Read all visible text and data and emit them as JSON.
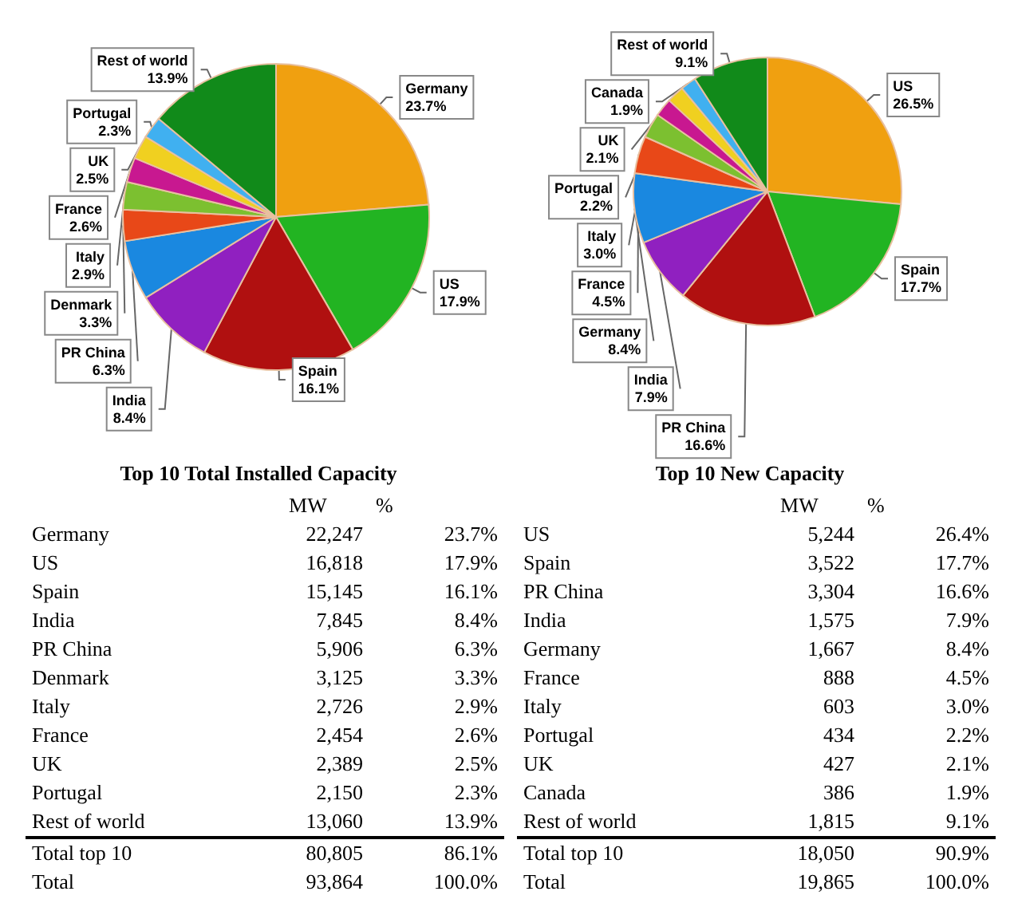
{
  "chart_data": [
    {
      "type": "pie",
      "title": "Top 10 Total Installed Capacity",
      "categories": [
        "Germany",
        "US",
        "Spain",
        "India",
        "PR China",
        "Denmark",
        "Italy",
        "France",
        "UK",
        "Portugal",
        "Rest of world"
      ],
      "values": [
        23.7,
        17.9,
        16.1,
        8.4,
        6.3,
        3.3,
        2.9,
        2.6,
        2.5,
        2.3,
        13.9
      ],
      "value_labels": [
        "23.7%",
        "17.9%",
        "16.1%",
        "8.4%",
        "6.3%",
        "3.3%",
        "2.9%",
        "2.6%",
        "2.5%",
        "2.3%",
        "13.9%"
      ],
      "colors": [
        "#f0a010",
        "#22b422",
        "#b01010",
        "#9020c0",
        "#1a88e0",
        "#e84818",
        "#7cc030",
        "#c81890",
        "#f0d020",
        "#40b0f0",
        "#118a1a"
      ],
      "data_labels": true,
      "legend": false
    },
    {
      "type": "other",
      "categories": [
        "MW",
        "%"
      ],
      "y_categories": [
        "Germany",
        "US",
        "Spain",
        "India",
        "PR China",
        "Denmark",
        "Italy",
        "France",
        "UK",
        "Portugal",
        "Rest of world"
      ],
      "cell_labels": [
        [
          "22,247",
          "23.7%"
        ],
        [
          "16,818",
          "17.9%"
        ],
        [
          "15,145",
          "16.1%"
        ],
        [
          "7,845",
          "8.4%"
        ],
        [
          "5,906",
          "6.3%"
        ],
        [
          "3,125",
          "3.3%"
        ],
        [
          "2,726",
          "2.9%"
        ],
        [
          "2,454",
          "2.6%"
        ],
        [
          "2,389",
          "2.5%"
        ],
        [
          "2,150",
          "2.3%"
        ],
        [
          "13,060",
          "13.9%"
        ]
      ],
      "totals": [
        [
          "Total top 10",
          "80,805",
          "86.1%"
        ],
        [
          "Total",
          "93,864",
          "100.0%"
        ]
      ]
    },
    {
      "type": "pie",
      "title": "Top 10 New Capacity",
      "categories": [
        "US",
        "Spain",
        "PR China",
        "India",
        "Germany",
        "France",
        "Italy",
        "Portugal",
        "UK",
        "Canada",
        "Rest of world"
      ],
      "values": [
        26.5,
        17.7,
        16.6,
        7.9,
        8.4,
        4.5,
        3.0,
        2.2,
        2.1,
        1.9,
        9.1
      ],
      "value_labels": [
        "26.5%",
        "17.7%",
        "16.6%",
        "7.9%",
        "8.4%",
        "4.5%",
        "3.0%",
        "2.2%",
        "2.1%",
        "1.9%",
        "9.1%"
      ],
      "colors": [
        "#f0a010",
        "#22b422",
        "#b01010",
        "#9020c0",
        "#1a88e0",
        "#e84818",
        "#7cc030",
        "#c81890",
        "#f0d020",
        "#40b0f0",
        "#118a1a"
      ],
      "data_labels": true,
      "legend": false
    },
    {
      "type": "other",
      "categories": [
        "MW",
        "%"
      ],
      "y_categories": [
        "US",
        "Spain",
        "PR China",
        "India",
        "Germany",
        "France",
        "Italy",
        "Portugal",
        "UK",
        "Canada",
        "Rest of world"
      ],
      "cell_labels": [
        [
          "5,244",
          "26.4%"
        ],
        [
          "3,522",
          "17.7%"
        ],
        [
          "3,304",
          "16.6%"
        ],
        [
          "1,575",
          "7.9%"
        ],
        [
          "1,667",
          "8.4%"
        ],
        [
          "888",
          "4.5%"
        ],
        [
          "603",
          "3.0%"
        ],
        [
          "434",
          "2.2%"
        ],
        [
          "427",
          "2.1%"
        ],
        [
          "386",
          "1.9%"
        ],
        [
          "1,815",
          "9.1%"
        ]
      ],
      "totals": [
        [
          "Total top 10",
          "18,050",
          "90.9%"
        ],
        [
          "Total",
          "19,865",
          "100.0%"
        ]
      ]
    }
  ]
}
